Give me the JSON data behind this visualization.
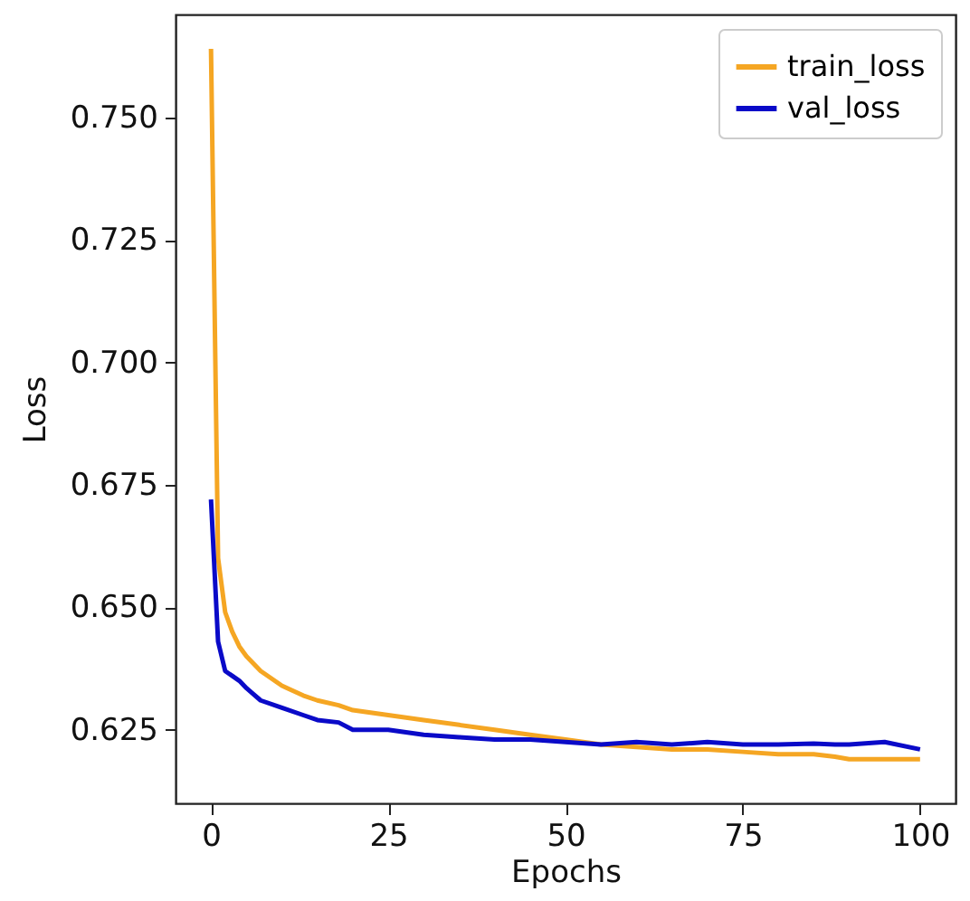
{
  "chart_data": {
    "type": "line",
    "xlabel": "Epochs",
    "ylabel": "Loss",
    "xlim": [
      -5,
      105
    ],
    "xticks": [
      0,
      25,
      50,
      75,
      100
    ],
    "ylim": [
      0.61,
      0.771
    ],
    "yticks": [
      0.625,
      {
        "value": 0.65,
        "label": "0.650"
      },
      0.675,
      {
        "value": 0.7,
        "label": "0.700"
      },
      0.725,
      {
        "value": 0.75,
        "label": "0.750"
      }
    ],
    "x": [
      0,
      1,
      2,
      3,
      4,
      5,
      7,
      10,
      13,
      15,
      18,
      20,
      25,
      30,
      35,
      40,
      45,
      50,
      55,
      60,
      65,
      70,
      75,
      80,
      85,
      88,
      90,
      95,
      100
    ],
    "series": [
      {
        "name": "train_loss",
        "color": "#f5a623",
        "values": [
          0.764,
          0.66,
          0.649,
          0.645,
          0.642,
          0.64,
          0.637,
          0.634,
          0.632,
          0.631,
          0.63,
          0.629,
          0.628,
          0.627,
          0.626,
          0.625,
          0.624,
          0.623,
          0.622,
          0.6215,
          0.621,
          0.621,
          0.6205,
          0.62,
          0.62,
          0.6195,
          0.619,
          0.619,
          0.619
        ]
      },
      {
        "name": "val_loss",
        "color": "#0a0ac8",
        "values": [
          0.672,
          0.643,
          0.637,
          0.636,
          0.635,
          0.6335,
          0.631,
          0.6295,
          0.628,
          0.627,
          0.6265,
          0.625,
          0.625,
          0.624,
          0.6235,
          0.623,
          0.623,
          0.6225,
          0.622,
          0.6225,
          0.622,
          0.6225,
          0.622,
          0.622,
          0.6222,
          0.622,
          0.622,
          0.6225,
          0.621
        ]
      }
    ],
    "legend": "top right",
    "grid": false,
    "line_style": "solid",
    "marker": "none"
  }
}
